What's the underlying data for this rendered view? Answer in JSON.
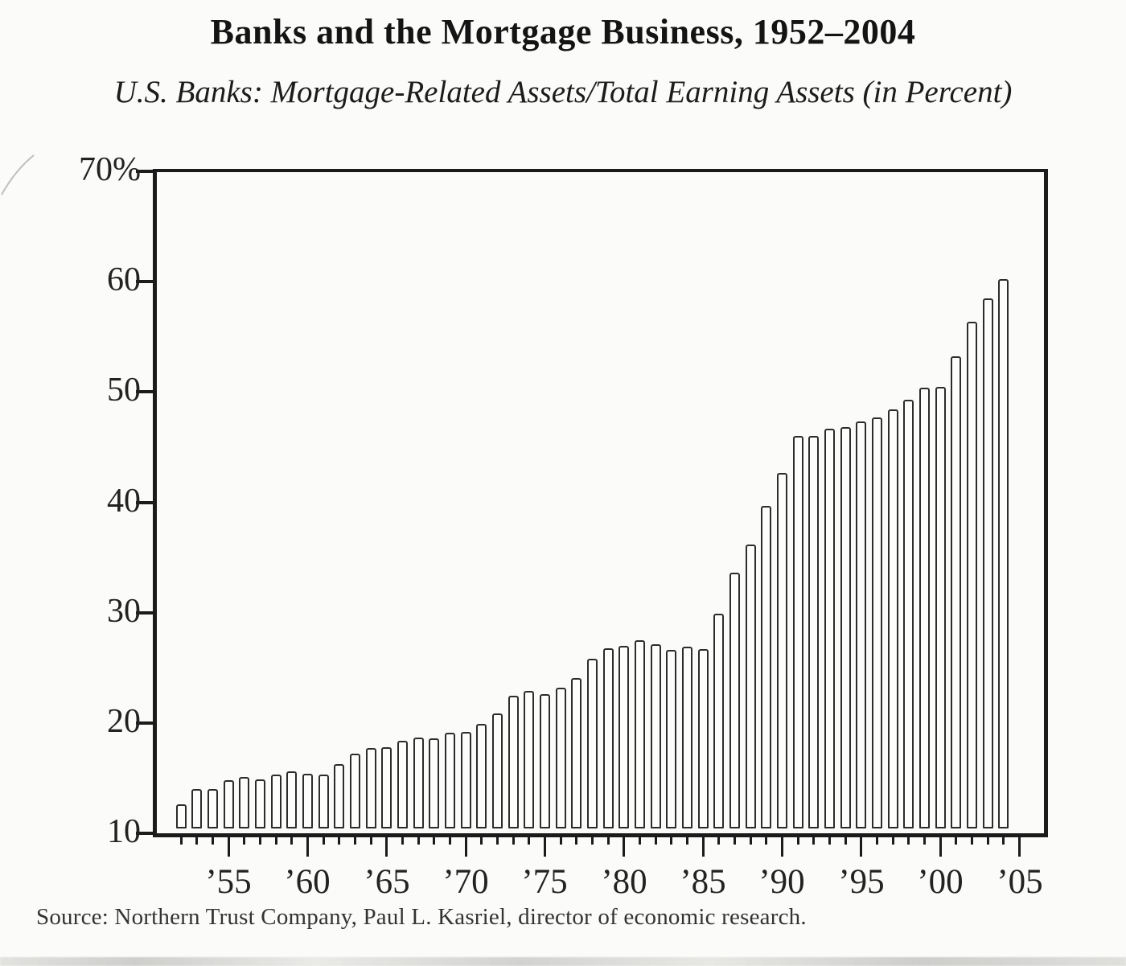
{
  "page": {
    "title": "Banks and the Mortgage Business, 1952–2004",
    "subtitle": "U.S. Banks: Mortgage-Related Assets/Total Earning Assets (in Percent)",
    "source": "Source: Northern Trust Company, Paul L. Kasriel, director of economic research."
  },
  "chart_data": {
    "type": "bar",
    "title": "Banks and the Mortgage Business, 1952–2004",
    "subtitle": "U.S. Banks: Mortgage-Related Assets/Total Earning Assets (in Percent)",
    "source": "Source: Northern Trust Company, Paul L. Kasriel, director of economic research.",
    "bar_style": "hollow-outline",
    "grid": false,
    "legend": false,
    "ylim": [
      10,
      70
    ],
    "y_tick_values": [
      70,
      60,
      50,
      40,
      30,
      20,
      10
    ],
    "y_tick_labels": [
      "70%",
      "60",
      "50",
      "40",
      "30",
      "20",
      "10"
    ],
    "x_tick_years": [
      1955,
      1960,
      1965,
      1970,
      1975,
      1980,
      1985,
      1990,
      1995,
      2000,
      2005
    ],
    "x_tick_labels": [
      "’55",
      "’60",
      "’65",
      "’70",
      "’75",
      "’80",
      "’85",
      "’90",
      "’95",
      "’00",
      "’05"
    ],
    "minor_tick_year_range": [
      1952,
      2005
    ],
    "categories": [
      1952,
      1953,
      1954,
      1955,
      1956,
      1957,
      1958,
      1959,
      1960,
      1961,
      1962,
      1963,
      1964,
      1965,
      1966,
      1967,
      1968,
      1969,
      1970,
      1971,
      1972,
      1973,
      1974,
      1975,
      1976,
      1977,
      1978,
      1979,
      1980,
      1981,
      1982,
      1983,
      1984,
      1985,
      1986,
      1987,
      1988,
      1989,
      1990,
      1991,
      1992,
      1993,
      1994,
      1995,
      1996,
      1997,
      1998,
      1999,
      2000,
      2001,
      2002,
      2003,
      2004
    ],
    "values": [
      12.6,
      14.0,
      14.0,
      14.8,
      15.1,
      14.9,
      15.3,
      15.6,
      15.4,
      15.3,
      16.3,
      17.2,
      17.7,
      17.8,
      18.4,
      18.7,
      18.6,
      19.1,
      19.2,
      19.9,
      20.9,
      22.5,
      22.9,
      22.6,
      23.2,
      24.1,
      25.8,
      26.8,
      27.0,
      27.5,
      27.1,
      26.6,
      26.9,
      26.7,
      29.9,
      33.6,
      36.2,
      39.7,
      42.7,
      46.0,
      46.0,
      46.7,
      46.8,
      47.3,
      47.7,
      48.4,
      49.3,
      50.4,
      50.5,
      53.2,
      56.4,
      58.5,
      60.2
    ]
  }
}
